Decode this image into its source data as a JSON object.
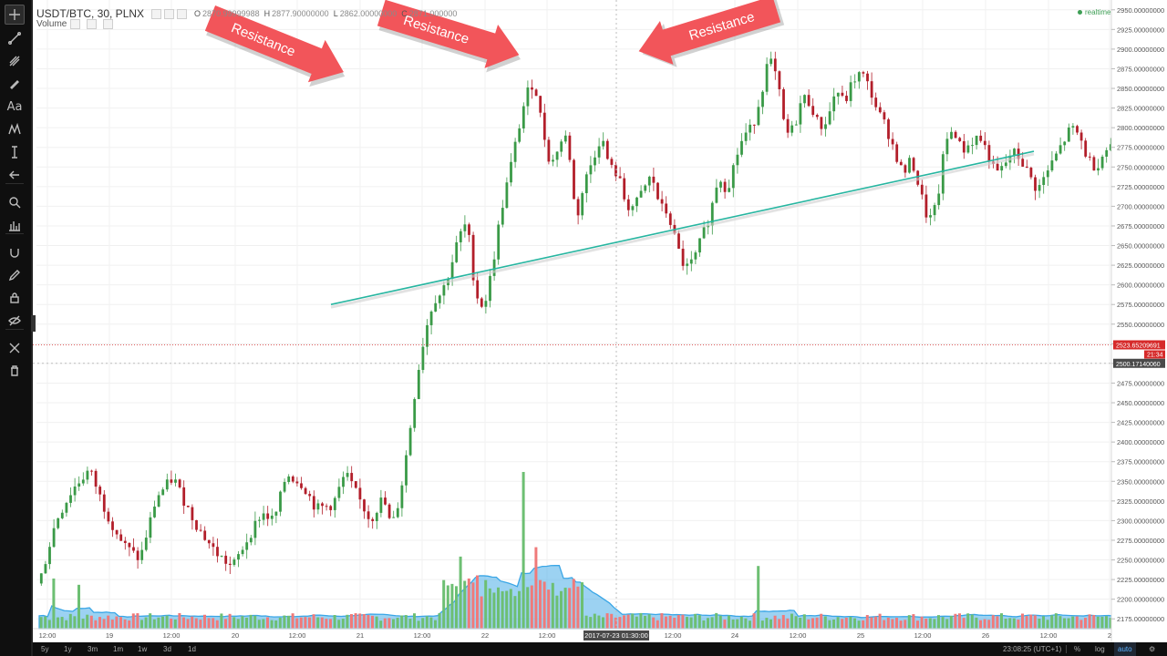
{
  "chart_data": {
    "type": "candlestick",
    "title": "USDT/BTC, 30, PLNX",
    "legend": {
      "symbol": "USDT/BTC, 30, PLNX",
      "ohlc": [
        {
          "label": "O",
          "value": "2870.99999988"
        },
        {
          "label": "H",
          "value": "2877.90000000"
        },
        {
          "label": "L",
          "value": "2862.00000000"
        },
        {
          "label": "C",
          "value": "2871.000000"
        }
      ],
      "volume_label": "Volume"
    },
    "ylim": [
      2162.5,
      2962.5
    ],
    "y_ticks": [
      "2950.00000000",
      "2925.00000000",
      "2900.00000000",
      "2875.00000000",
      "2850.00000000",
      "2825.00000000",
      "2800.00000000",
      "2775.00000000",
      "2750.00000000",
      "2725.00000000",
      "2700.00000000",
      "2675.00000000",
      "2650.00000000",
      "2625.00000000",
      "2600.00000000",
      "2575.00000000",
      "2550.00000000",
      "2525.00000000",
      "2500.00000000",
      "2475.00000000",
      "2450.00000000",
      "2425.00000000",
      "2400.00000000",
      "2375.00000000",
      "2350.00000000",
      "2325.00000000",
      "2300.00000000",
      "2275.00000000",
      "2250.00000000",
      "2225.00000000",
      "2200.00000000",
      "2175.00000000"
    ],
    "x_ticks": [
      "12:00",
      "19",
      "12:00",
      "20",
      "12:00",
      "21",
      "12:00",
      "22",
      "12:00",
      "2017-07-23 01:30:00",
      "12:00",
      "24",
      "12:00",
      "25",
      "12:00",
      "26",
      "12:00",
      "2"
    ],
    "price_points": [
      [
        0,
        2220
      ],
      [
        4,
        2300
      ],
      [
        8,
        2340
      ],
      [
        12,
        2365
      ],
      [
        16,
        2310
      ],
      [
        20,
        2270
      ],
      [
        24,
        2250
      ],
      [
        28,
        2330
      ],
      [
        32,
        2355
      ],
      [
        35,
        2320
      ],
      [
        38,
        2290
      ],
      [
        42,
        2260
      ],
      [
        46,
        2240
      ],
      [
        50,
        2280
      ],
      [
        53,
        2310
      ],
      [
        56,
        2300
      ],
      [
        59,
        2360
      ],
      [
        63,
        2345
      ],
      [
        66,
        2315
      ],
      [
        70,
        2320
      ],
      [
        73,
        2360
      ],
      [
        76,
        2330
      ],
      [
        79,
        2300
      ],
      [
        82,
        2330
      ],
      [
        84,
        2290
      ],
      [
        86,
        2330
      ],
      [
        88,
        2400
      ],
      [
        90,
        2480
      ],
      [
        92,
        2540
      ],
      [
        94,
        2580
      ],
      [
        96,
        2590
      ],
      [
        98,
        2620
      ],
      [
        100,
        2660
      ],
      [
        102,
        2680
      ],
      [
        104,
        2590
      ],
      [
        106,
        2570
      ],
      [
        108,
        2620
      ],
      [
        110,
        2690
      ],
      [
        112,
        2740
      ],
      [
        114,
        2790
      ],
      [
        116,
        2840
      ],
      [
        118,
        2860
      ],
      [
        120,
        2800
      ],
      [
        122,
        2750
      ],
      [
        124,
        2780
      ],
      [
        126,
        2790
      ],
      [
        128,
        2680
      ],
      [
        130,
        2730
      ],
      [
        132,
        2760
      ],
      [
        134,
        2790
      ],
      [
        136,
        2750
      ],
      [
        138,
        2740
      ],
      [
        140,
        2700
      ],
      [
        142,
        2700
      ],
      [
        144,
        2720
      ],
      [
        146,
        2740
      ],
      [
        148,
        2700
      ],
      [
        150,
        2690
      ],
      [
        152,
        2650
      ],
      [
        154,
        2620
      ],
      [
        156,
        2630
      ],
      [
        158,
        2660
      ],
      [
        160,
        2690
      ],
      [
        162,
        2740
      ],
      [
        164,
        2720
      ],
      [
        166,
        2760
      ],
      [
        168,
        2790
      ],
      [
        170,
        2800
      ],
      [
        172,
        2840
      ],
      [
        174,
        2890
      ],
      [
        176,
        2860
      ],
      [
        178,
        2790
      ],
      [
        180,
        2800
      ],
      [
        182,
        2840
      ],
      [
        184,
        2830
      ],
      [
        186,
        2800
      ],
      [
        188,
        2810
      ],
      [
        190,
        2850
      ],
      [
        192,
        2830
      ],
      [
        194,
        2860
      ],
      [
        196,
        2870
      ],
      [
        198,
        2850
      ],
      [
        200,
        2820
      ],
      [
        202,
        2800
      ],
      [
        204,
        2770
      ],
      [
        206,
        2740
      ],
      [
        208,
        2760
      ],
      [
        210,
        2720
      ],
      [
        212,
        2680
      ],
      [
        214,
        2700
      ],
      [
        216,
        2780
      ],
      [
        218,
        2800
      ],
      [
        220,
        2770
      ],
      [
        222,
        2780
      ],
      [
        224,
        2790
      ],
      [
        226,
        2770
      ],
      [
        228,
        2740
      ],
      [
        230,
        2750
      ],
      [
        232,
        2770
      ],
      [
        234,
        2760
      ],
      [
        236,
        2740
      ],
      [
        238,
        2720
      ],
      [
        240,
        2740
      ],
      [
        242,
        2760
      ],
      [
        244,
        2780
      ],
      [
        246,
        2800
      ],
      [
        248,
        2790
      ],
      [
        250,
        2760
      ],
      [
        252,
        2750
      ],
      [
        254,
        2770
      ],
      [
        256,
        2780
      ],
      [
        258,
        2790
      ],
      [
        260,
        2770
      ],
      [
        262,
        2775
      ],
      [
        264,
        2765
      ],
      [
        266,
        2785
      ],
      [
        268,
        2700
      ],
      [
        270,
        2660
      ],
      [
        272,
        2640
      ],
      [
        274,
        2620
      ],
      [
        276,
        2560
      ],
      [
        278,
        2540
      ],
      [
        280,
        2600
      ],
      [
        282,
        2570
      ],
      [
        284,
        2520
      ],
      [
        286,
        2500
      ],
      [
        288,
        2450
      ],
      [
        290,
        2440
      ],
      [
        292,
        2510
      ],
      [
        293,
        2530
      ],
      [
        294,
        2520
      ]
    ],
    "volume_spikes": [
      {
        "bar": 3,
        "value": 0.32
      },
      {
        "bar": 9,
        "value": 0.28
      },
      {
        "bar": 100,
        "value": 0.46
      },
      {
        "bar": 104,
        "value": 0.34
      },
      {
        "bar": 115,
        "value": 1.0
      },
      {
        "bar": 118,
        "value": 0.52
      },
      {
        "bar": 171,
        "value": 0.4
      },
      {
        "bar": 271,
        "value": 0.52
      },
      {
        "bar": 276,
        "value": 0.54
      },
      {
        "bar": 292,
        "value": 0.44
      }
    ],
    "trendline": {
      "from": [
        2017.0,
        2575
      ],
      "to": [
        2018.0,
        2770
      ],
      "color": "#26b5a0"
    },
    "crosshair": {
      "price_tag": "2500.17140060",
      "time_label": "2017-07-23 01:30:00"
    },
    "last_price": {
      "value": "2523.65209691",
      "countdown": "21:34",
      "color": "#d62a2a"
    },
    "annotations": [
      {
        "text": "Resistance"
      },
      {
        "text": "Resistance"
      },
      {
        "text": "Resistance"
      }
    ],
    "colors": {
      "up": "#3a9a47",
      "down": "#b21e2a",
      "volume_up": "#6dbf73",
      "volume_down": "#ef7a7a",
      "volume_ma": "#3aa6e6",
      "arrow": "#f2555a"
    }
  },
  "realtime_label": "realtime",
  "toolbar_icons": [
    "crosshair-icon",
    "trendline-icon",
    "pitchfork-icon",
    "brush-icon",
    "text-icon",
    "pattern-icon",
    "measure-icon",
    "arrow-back-icon",
    "zoom-icon",
    "bar-measure-icon",
    "magnet-icon",
    "pencil-icon",
    "lock-icon",
    "eye-icon",
    "tools-icon",
    "trash-icon"
  ],
  "toolbar_text_icon": "Aa",
  "ranges": [
    "5y",
    "1y",
    "3m",
    "1m",
    "1w",
    "3d",
    "1d"
  ],
  "status": {
    "time": "23:08:25 (UTC+1)",
    "percent": "%",
    "log": "log",
    "auto": "auto"
  }
}
